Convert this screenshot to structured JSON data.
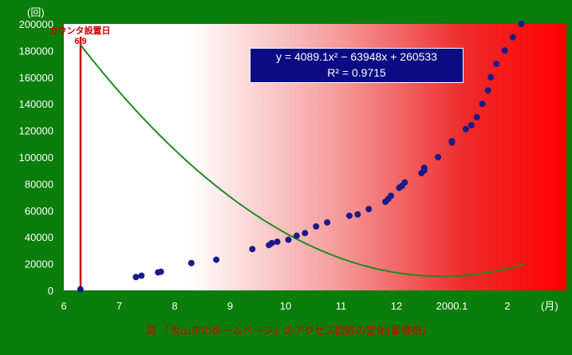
{
  "chart_data": {
    "type": "scatter",
    "y_unit": "(回)",
    "x_unit": "(月)",
    "y_ticks": [
      "200000",
      "180000",
      "160000",
      "140000",
      "120000",
      "100000",
      "80000",
      "60000",
      "40000",
      "20000",
      "0"
    ],
    "x_ticks": [
      "6",
      "7",
      "8",
      "9",
      "10",
      "11",
      "12",
      "2000.1",
      "2"
    ],
    "ylim": [
      0,
      200000
    ],
    "xlim": [
      6,
      2.7
    ],
    "points": [
      [
        6.3,
        800
      ],
      [
        7.3,
        10000
      ],
      [
        7.4,
        11000
      ],
      [
        7.7,
        13500
      ],
      [
        7.75,
        14000
      ],
      [
        8.3,
        20500
      ],
      [
        8.75,
        23000
      ],
      [
        9.4,
        31000
      ],
      [
        9.7,
        34000
      ],
      [
        9.75,
        35500
      ],
      [
        9.85,
        36500
      ],
      [
        10.05,
        38000
      ],
      [
        10.2,
        41000
      ],
      [
        10.35,
        43000
      ],
      [
        10.55,
        48000
      ],
      [
        10.75,
        51000
      ],
      [
        11.15,
        56000
      ],
      [
        11.3,
        57000
      ],
      [
        11.5,
        61000
      ],
      [
        11.8,
        66500
      ],
      [
        11.85,
        68500
      ],
      [
        11.9,
        71000
      ],
      [
        12.05,
        77000
      ],
      [
        12.1,
        78500
      ],
      [
        12.15,
        81000
      ],
      [
        12.45,
        88000
      ],
      [
        12.5,
        90000
      ],
      [
        12.5,
        92000
      ],
      [
        12.75,
        100000
      ],
      [
        13.0,
        111000
      ],
      [
        13.0,
        112000
      ],
      [
        13.25,
        121000
      ],
      [
        13.35,
        124000
      ],
      [
        13.45,
        130000
      ],
      [
        13.55,
        140000
      ],
      [
        13.65,
        150000
      ],
      [
        13.7,
        160000
      ],
      [
        13.8,
        170000
      ],
      [
        13.95,
        180000
      ],
      [
        14.1,
        190000
      ],
      [
        14.25,
        200000
      ]
    ],
    "trendline": {
      "a": 4089.1,
      "b": -63948,
      "c": 260533,
      "x_start": 6.3,
      "x_end": 14.3
    },
    "equation": {
      "line1": "y = 4089.1x² − 63948x + 260533",
      "line2": "R² = 0.9715"
    },
    "marker": {
      "label": "カウンタ設置日",
      "date": "6/9",
      "x": 6.3
    },
    "caption": "図 「大山市のホームページ」のアクセス回数の変化(累積数)",
    "colors": {
      "points": "#1a1a8c",
      "trend": "#1f8a1f",
      "marker": "#cc0000",
      "frame": "#008000"
    }
  }
}
